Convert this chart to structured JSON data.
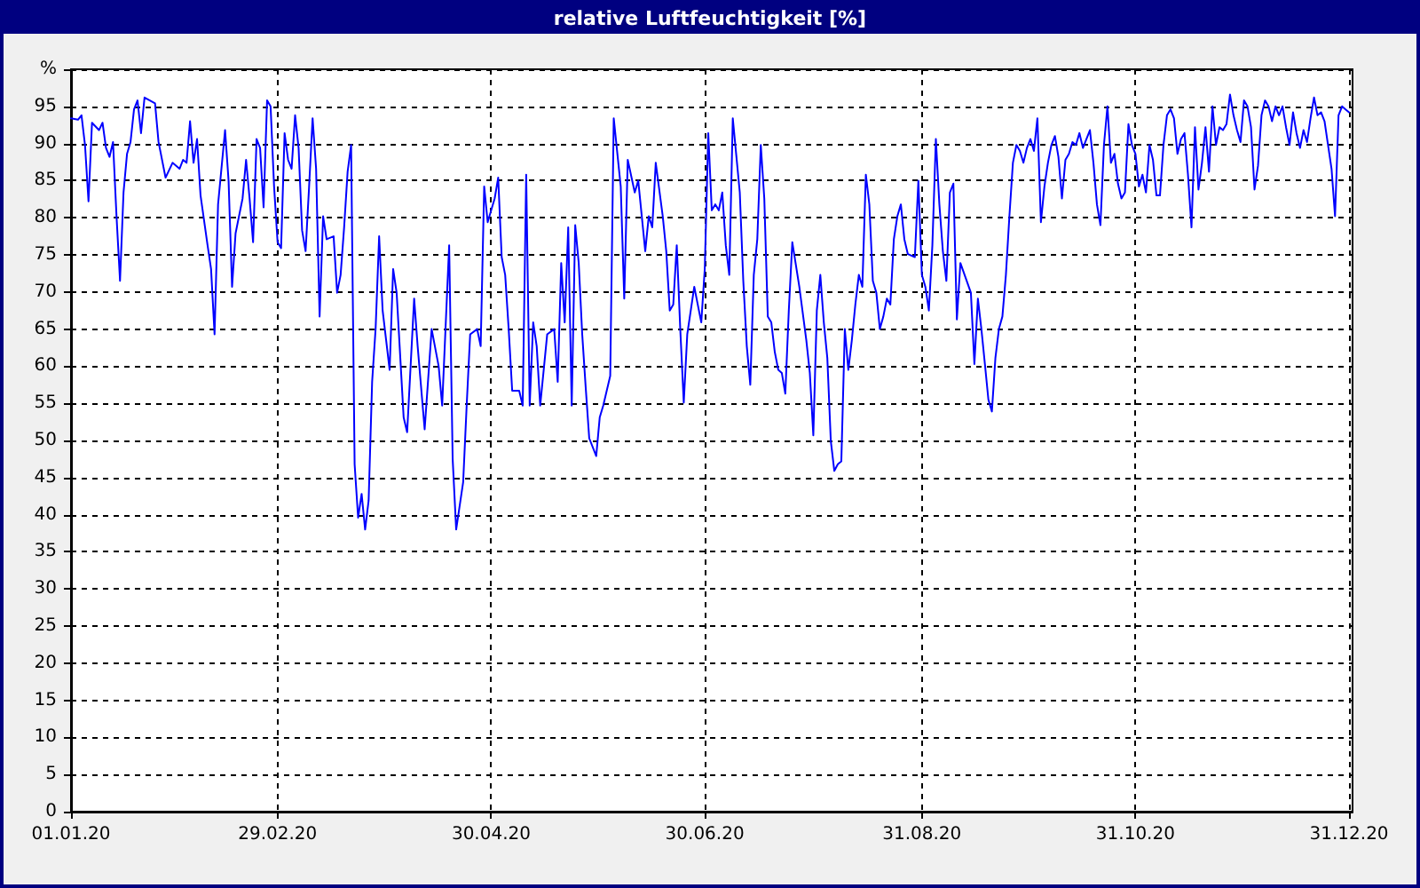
{
  "chart_data": {
    "type": "line",
    "title": "relative Luftfeuchtigkeit [%]",
    "color": "#0000ff",
    "marker": "none",
    "line_style": "solid",
    "grid": true,
    "xlim": [
      "2020-01-01",
      "2021-01-01"
    ],
    "xticks": [
      {
        "value": "2020-01-01",
        "label": "01.01.20"
      },
      {
        "value": "2020-02-29",
        "label": "29.02.20"
      },
      {
        "value": "2020-04-30",
        "label": "30.04.20"
      },
      {
        "value": "2020-06-30",
        "label": "30.06.20"
      },
      {
        "value": "2020-08-31",
        "label": "31.08.20"
      },
      {
        "value": "2020-10-31",
        "label": "31.10.20"
      },
      {
        "value": "2020-12-31",
        "label": "31.12.20"
      }
    ],
    "ylim": [
      0,
      100
    ],
    "yticks": [
      0,
      5,
      10,
      15,
      20,
      25,
      30,
      35,
      40,
      45,
      50,
      55,
      60,
      65,
      70,
      75,
      80,
      85,
      90,
      95,
      {
        "value": 100,
        "label": "%"
      }
    ],
    "x": [
      "2020-01-01",
      "2020-01-03",
      "2020-01-04",
      "2020-01-05",
      "2020-01-06",
      "2020-01-07",
      "2020-01-09",
      "2020-01-10",
      "2020-01-11",
      "2020-01-12",
      "2020-01-13",
      "2020-01-14",
      "2020-01-15",
      "2020-01-16",
      "2020-01-17",
      "2020-01-18",
      "2020-01-19",
      "2020-01-20",
      "2020-01-21",
      "2020-01-22",
      "2020-01-25",
      "2020-01-26",
      "2020-01-28",
      "2020-01-30",
      "2020-02-01",
      "2020-02-02",
      "2020-02-03",
      "2020-02-04",
      "2020-02-05",
      "2020-02-06",
      "2020-02-07",
      "2020-02-09",
      "2020-02-10",
      "2020-02-11",
      "2020-02-12",
      "2020-02-14",
      "2020-02-15",
      "2020-02-16",
      "2020-02-17",
      "2020-02-19",
      "2020-02-20",
      "2020-02-21",
      "2020-02-22",
      "2020-02-23",
      "2020-02-24",
      "2020-02-25",
      "2020-02-26",
      "2020-02-27",
      "2020-02-28",
      "2020-02-29",
      "2020-03-01",
      "2020-03-02",
      "2020-03-03",
      "2020-03-04",
      "2020-03-05",
      "2020-03-06",
      "2020-03-07",
      "2020-03-08",
      "2020-03-09",
      "2020-03-10",
      "2020-03-11",
      "2020-03-12",
      "2020-03-13",
      "2020-03-14",
      "2020-03-16",
      "2020-03-17",
      "2020-03-18",
      "2020-03-19",
      "2020-03-20",
      "2020-03-21",
      "2020-03-22",
      "2020-03-23",
      "2020-03-24",
      "2020-03-25",
      "2020-03-26",
      "2020-03-27",
      "2020-03-28",
      "2020-03-29",
      "2020-03-30",
      "2020-03-31",
      "2020-04-01",
      "2020-04-02",
      "2020-04-03",
      "2020-04-05",
      "2020-04-06",
      "2020-04-08",
      "2020-04-09",
      "2020-04-11",
      "2020-04-13",
      "2020-04-15",
      "2020-04-16",
      "2020-04-18",
      "2020-04-19",
      "2020-04-20",
      "2020-04-22",
      "2020-04-23",
      "2020-04-24",
      "2020-04-26",
      "2020-04-27",
      "2020-04-28",
      "2020-04-29",
      "2020-04-30",
      "2020-05-01",
      "2020-05-02",
      "2020-05-03",
      "2020-05-04",
      "2020-05-05",
      "2020-05-06",
      "2020-05-08",
      "2020-05-09",
      "2020-05-10",
      "2020-05-11",
      "2020-05-12",
      "2020-05-13",
      "2020-05-14",
      "2020-05-15",
      "2020-05-16",
      "2020-05-18",
      "2020-05-19",
      "2020-05-20",
      "2020-05-21",
      "2020-05-22",
      "2020-05-23",
      "2020-05-24",
      "2020-05-25",
      "2020-05-26",
      "2020-05-27",
      "2020-05-28",
      "2020-05-30",
      "2020-05-31",
      "2020-06-01",
      "2020-06-03",
      "2020-06-04",
      "2020-06-06",
      "2020-06-07",
      "2020-06-08",
      "2020-06-10",
      "2020-06-11",
      "2020-06-13",
      "2020-06-14",
      "2020-06-15",
      "2020-06-16",
      "2020-06-18",
      "2020-06-19",
      "2020-06-20",
      "2020-06-21",
      "2020-06-22",
      "2020-06-23",
      "2020-06-24",
      "2020-06-25",
      "2020-06-27",
      "2020-06-29",
      "2020-06-30",
      "2020-07-01",
      "2020-07-02",
      "2020-07-03",
      "2020-07-04",
      "2020-07-05",
      "2020-07-06",
      "2020-07-07",
      "2020-07-08",
      "2020-07-10",
      "2020-07-11",
      "2020-07-12",
      "2020-07-13",
      "2020-07-14",
      "2020-07-15",
      "2020-07-16",
      "2020-07-17",
      "2020-07-18",
      "2020-07-19",
      "2020-07-20",
      "2020-07-21",
      "2020-07-22",
      "2020-07-23",
      "2020-07-24",
      "2020-07-25",
      "2020-07-27",
      "2020-07-29",
      "2020-07-30",
      "2020-07-31",
      "2020-08-01",
      "2020-08-02",
      "2020-08-03",
      "2020-08-04",
      "2020-08-05",
      "2020-08-06",
      "2020-08-07",
      "2020-08-08",
      "2020-08-09",
      "2020-08-10",
      "2020-08-11",
      "2020-08-12",
      "2020-08-13",
      "2020-08-14",
      "2020-08-15",
      "2020-08-16",
      "2020-08-17",
      "2020-08-18",
      "2020-08-19",
      "2020-08-20",
      "2020-08-21",
      "2020-08-22",
      "2020-08-23",
      "2020-08-24",
      "2020-08-25",
      "2020-08-26",
      "2020-08-27",
      "2020-08-29",
      "2020-08-30",
      "2020-08-31",
      "2020-09-01",
      "2020-09-02",
      "2020-09-03",
      "2020-09-04",
      "2020-09-05",
      "2020-09-06",
      "2020-09-07",
      "2020-09-08",
      "2020-09-09",
      "2020-09-10",
      "2020-09-11",
      "2020-09-14",
      "2020-09-15",
      "2020-09-16",
      "2020-09-17",
      "2020-09-18",
      "2020-09-19",
      "2020-09-20",
      "2020-09-21",
      "2020-09-22",
      "2020-09-23",
      "2020-09-24",
      "2020-09-25",
      "2020-09-26",
      "2020-09-27",
      "2020-09-28",
      "2020-09-29",
      "2020-09-30",
      "2020-10-01",
      "2020-10-02",
      "2020-10-03",
      "2020-10-04",
      "2020-10-05",
      "2020-10-06",
      "2020-10-07",
      "2020-10-08",
      "2020-10-09",
      "2020-10-10",
      "2020-10-11",
      "2020-10-12",
      "2020-10-13",
      "2020-10-14",
      "2020-10-15",
      "2020-10-16",
      "2020-10-17",
      "2020-10-18",
      "2020-10-19",
      "2020-10-20",
      "2020-10-21",
      "2020-10-22",
      "2020-10-23",
      "2020-10-24",
      "2020-10-25",
      "2020-10-26",
      "2020-10-27",
      "2020-10-28",
      "2020-10-29",
      "2020-10-30",
      "2020-10-31",
      "2020-11-01",
      "2020-11-02",
      "2020-11-03",
      "2020-11-04",
      "2020-11-05",
      "2020-11-06",
      "2020-11-07",
      "2020-11-08",
      "2020-11-09",
      "2020-11-10",
      "2020-11-11",
      "2020-11-12",
      "2020-11-13",
      "2020-11-14",
      "2020-11-15",
      "2020-11-16",
      "2020-11-17",
      "2020-11-18",
      "2020-11-19",
      "2020-11-20",
      "2020-11-21",
      "2020-11-22",
      "2020-11-23",
      "2020-11-24",
      "2020-11-25",
      "2020-11-26",
      "2020-11-27",
      "2020-11-28",
      "2020-11-29",
      "2020-11-30",
      "2020-12-01",
      "2020-12-02",
      "2020-12-03",
      "2020-12-04",
      "2020-12-05",
      "2020-12-06",
      "2020-12-07",
      "2020-12-08",
      "2020-12-09",
      "2020-12-10",
      "2020-12-11",
      "2020-12-12",
      "2020-12-13",
      "2020-12-14",
      "2020-12-15",
      "2020-12-16",
      "2020-12-17",
      "2020-12-18",
      "2020-12-19",
      "2020-12-20",
      "2020-12-21",
      "2020-12-22",
      "2020-12-23",
      "2020-12-24",
      "2020-12-25",
      "2020-12-26",
      "2020-12-27",
      "2020-12-28",
      "2020-12-29",
      "2020-12-30",
      "2020-12-31"
    ],
    "values": [
      93.4,
      93.2,
      93.8,
      89.8,
      82.2,
      92.8,
      91.8,
      92.8,
      89.4,
      88.2,
      90.2,
      80.2,
      71.5,
      83.4,
      88.6,
      90.2,
      94.6,
      95.8,
      91.4,
      96.2,
      95.4,
      90.2,
      85.4,
      87.4,
      86.6,
      87.8,
      87.4,
      93,
      87.4,
      90.6,
      83,
      76.3,
      73.1,
      64.3,
      81.8,
      91.8,
      85,
      70.7,
      77.9,
      82.6,
      87.8,
      82.6,
      76.7,
      90.6,
      89.4,
      81.4,
      95.8,
      95,
      84.2,
      76.7,
      75.9,
      91.4,
      87.8,
      86.6,
      93.8,
      89.4,
      78.3,
      75.5,
      84.2,
      93.4,
      86.6,
      66.7,
      80.2,
      77.1,
      77.5,
      69.9,
      72.3,
      78.7,
      86.2,
      89.8,
      46.8,
      39.6,
      42.8,
      38,
      41.9,
      57.9,
      65.1,
      77.5,
      67.5,
      63.5,
      59.5,
      73.1,
      69.9,
      53.1,
      51.1,
      69.1,
      62.7,
      51.5,
      65,
      60,
      54.7,
      76.3,
      47.5,
      38,
      44.4,
      54.7,
      64.3,
      65,
      62.7,
      84.2,
      79.4,
      81,
      82.6,
      85.4,
      74.7,
      72.3,
      65,
      56.7,
      56.7,
      54.7,
      85.8,
      54.7,
      65.9,
      62.7,
      54.7,
      59.5,
      64.3,
      65,
      57.9,
      73.9,
      65.9,
      78.7,
      54.7,
      79,
      73.9,
      64.3,
      57.1,
      50.3,
      47.9,
      53.1,
      54.7,
      58.7,
      93.4,
      84.2,
      69.1,
      87.8,
      83.4,
      85,
      75.5,
      80.2,
      78.7,
      87.4,
      80.2,
      75.5,
      67.5,
      68.3,
      76.3,
      65,
      55.1,
      64.3,
      70.7,
      65.9,
      73.1,
      91.4,
      81,
      81.8,
      81,
      83.4,
      76.3,
      72.3,
      93.4,
      83.4,
      71.5,
      62.7,
      57.5,
      72.3,
      77.1,
      89.8,
      82.6,
      66.7,
      65.9,
      61.9,
      59.5,
      59.1,
      56.3,
      67.5,
      76.7,
      70.7,
      63.5,
      59.1,
      50.7,
      67.5,
      72.3,
      65.9,
      61.1,
      49.9,
      45.9,
      46.8,
      47.2,
      65,
      59.5,
      63.5,
      68.3,
      72.3,
      70.7,
      85.8,
      81.8,
      71.5,
      69.9,
      65,
      66.7,
      69.1,
      68.3,
      77.1,
      80.2,
      81.8,
      77.1,
      75.1,
      74.7,
      85,
      72.3,
      70.7,
      67.5,
      76.3,
      90.6,
      81.8,
      75.5,
      71.5,
      83.4,
      84.6,
      66.3,
      73.9,
      69.9,
      60.3,
      69.1,
      65,
      60.3,
      55.5,
      53.9,
      61.1,
      65,
      66.7,
      72.3,
      80.2,
      87.4,
      89.8,
      89,
      87.4,
      89.4,
      90.6,
      89,
      93.4,
      79.4,
      84.2,
      87.4,
      89.8,
      91,
      88.2,
      82.6,
      87.8,
      88.6,
      90.2,
      89.8,
      91.4,
      89.4,
      90.6,
      91.8,
      87.4,
      81.8,
      79,
      89.8,
      95,
      87.4,
      88.6,
      84.6,
      82.6,
      83.4,
      92.6,
      89.8,
      88.6,
      84.2,
      85.8,
      83.4,
      89.8,
      87.8,
      83,
      83,
      89.8,
      93.8,
      94.6,
      93.4,
      88.6,
      90.6,
      91.4,
      85.8,
      78.7,
      92.2,
      83.8,
      87.4,
      92.2,
      86.2,
      95,
      89.8,
      92.2,
      91.8,
      92.6,
      96.6,
      93.8,
      91.8,
      90.2,
      95.8,
      95,
      92.2,
      83.8,
      87,
      93.8,
      95.8,
      95,
      93,
      95,
      93.8,
      95,
      92.2,
      89.8,
      94.2,
      91.4,
      89.4,
      91.8,
      90.2,
      93.4,
      96.2,
      93.8,
      94.2,
      93,
      89.8,
      86.6,
      80.2,
      93.8,
      95,
      94.6,
      94.2
    ]
  }
}
